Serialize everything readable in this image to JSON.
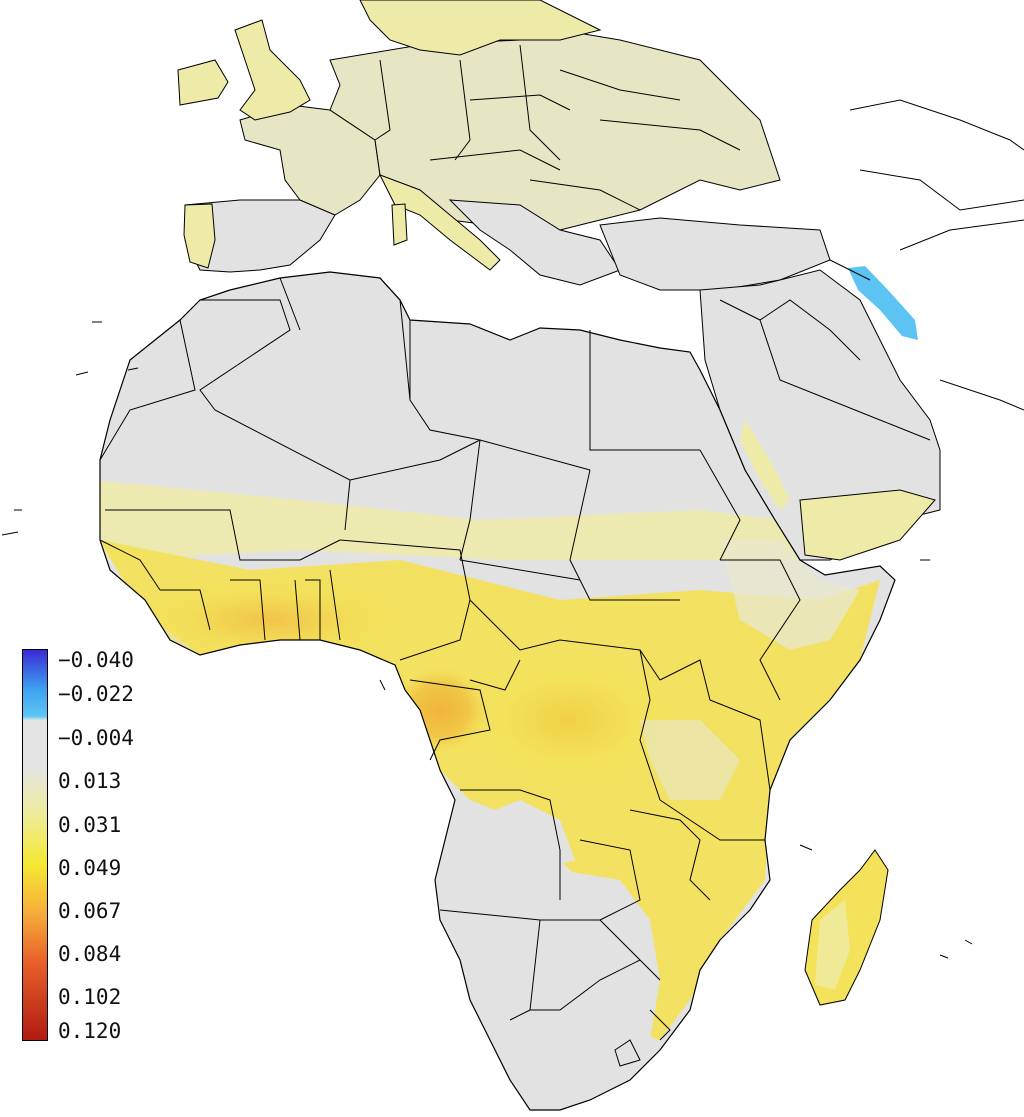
{
  "legend": {
    "labels": [
      "−0.040",
      "−0.022",
      "−0.004",
      "0.013",
      "0.031",
      "0.049",
      "0.067",
      "0.084",
      "0.102",
      "0.120"
    ],
    "colors": {
      "min": "#3a2ad6",
      "negative_mid": "#3fa0ef",
      "negative_light": "#5cc7f5",
      "zero": "#e4e4e4",
      "low": "#eeec9a",
      "mid": "#f5e832",
      "high": "#f6b03a",
      "higher": "#e8602a",
      "max": "#b01a12"
    }
  },
  "map": {
    "colors": {
      "land_neutral": "#e2e2e2",
      "land_light_yellow": "#eeeba8",
      "land_yellow": "#f3e25a",
      "land_orange": "#f2bf45",
      "negative_blue": "#5cc3f2",
      "border": "#000000",
      "water": "#ffffff"
    }
  }
}
